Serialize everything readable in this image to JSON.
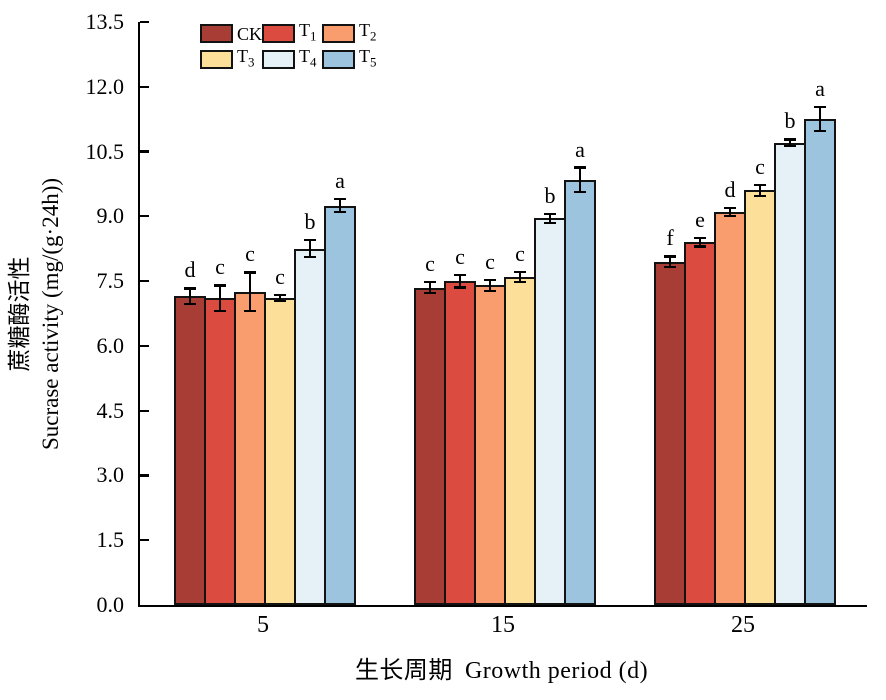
{
  "chart_data": {
    "type": "bar",
    "title": "",
    "xlabel_cn": "生长周期",
    "xlabel_en": "Growth period (d)",
    "ylabel_cn": "蔗糖酶活性",
    "ylabel_en": "Sucrase activity (mg/(g·24h))",
    "ylim": [
      0,
      13.5
    ],
    "ytick_step": 1.5,
    "ytick_labels": [
      "0.0",
      "1.5",
      "3.0",
      "4.5",
      "6.0",
      "7.5",
      "9.0",
      "10.5",
      "12.0",
      "13.5"
    ],
    "categories": [
      "5",
      "15",
      "25"
    ],
    "grid": false,
    "legend_position": "top-left-inside",
    "series": [
      {
        "name": "CK",
        "sub": "",
        "color": "#A83D35",
        "values": [
          7.15,
          7.35,
          7.95
        ],
        "errors": [
          0.18,
          0.12,
          0.12
        ],
        "letters": [
          "d",
          "c",
          "f"
        ]
      },
      {
        "name": "T",
        "sub": "1",
        "color": "#DC4B40",
        "values": [
          7.1,
          7.5,
          8.4
        ],
        "errors": [
          0.3,
          0.15,
          0.1
        ],
        "letters": [
          "c",
          "c",
          "e"
        ]
      },
      {
        "name": "T",
        "sub": "2",
        "color": "#F99C6E",
        "values": [
          7.25,
          7.4,
          9.1
        ],
        "errors": [
          0.45,
          0.12,
          0.1
        ],
        "letters": [
          "c",
          "c",
          "d"
        ]
      },
      {
        "name": "T",
        "sub": "3",
        "color": "#FCDF99",
        "values": [
          7.1,
          7.6,
          9.6
        ],
        "errors": [
          0.07,
          0.12,
          0.12
        ],
        "letters": [
          "c",
          "c",
          "c"
        ]
      },
      {
        "name": "T",
        "sub": "4",
        "color": "#E6F0F7",
        "values": [
          8.25,
          8.95,
          10.7
        ],
        "errors": [
          0.2,
          0.1,
          0.08
        ],
        "letters": [
          "b",
          "b",
          "b"
        ]
      },
      {
        "name": "T",
        "sub": "5",
        "color": "#9CC4DF",
        "values": [
          9.25,
          9.85,
          11.25
        ],
        "errors": [
          0.15,
          0.28,
          0.28
        ],
        "letters": [
          "a",
          "a",
          "a"
        ]
      }
    ],
    "colors": {
      "axis": "#000000",
      "bar_border": "#121212",
      "error_bar": "#000000"
    }
  }
}
